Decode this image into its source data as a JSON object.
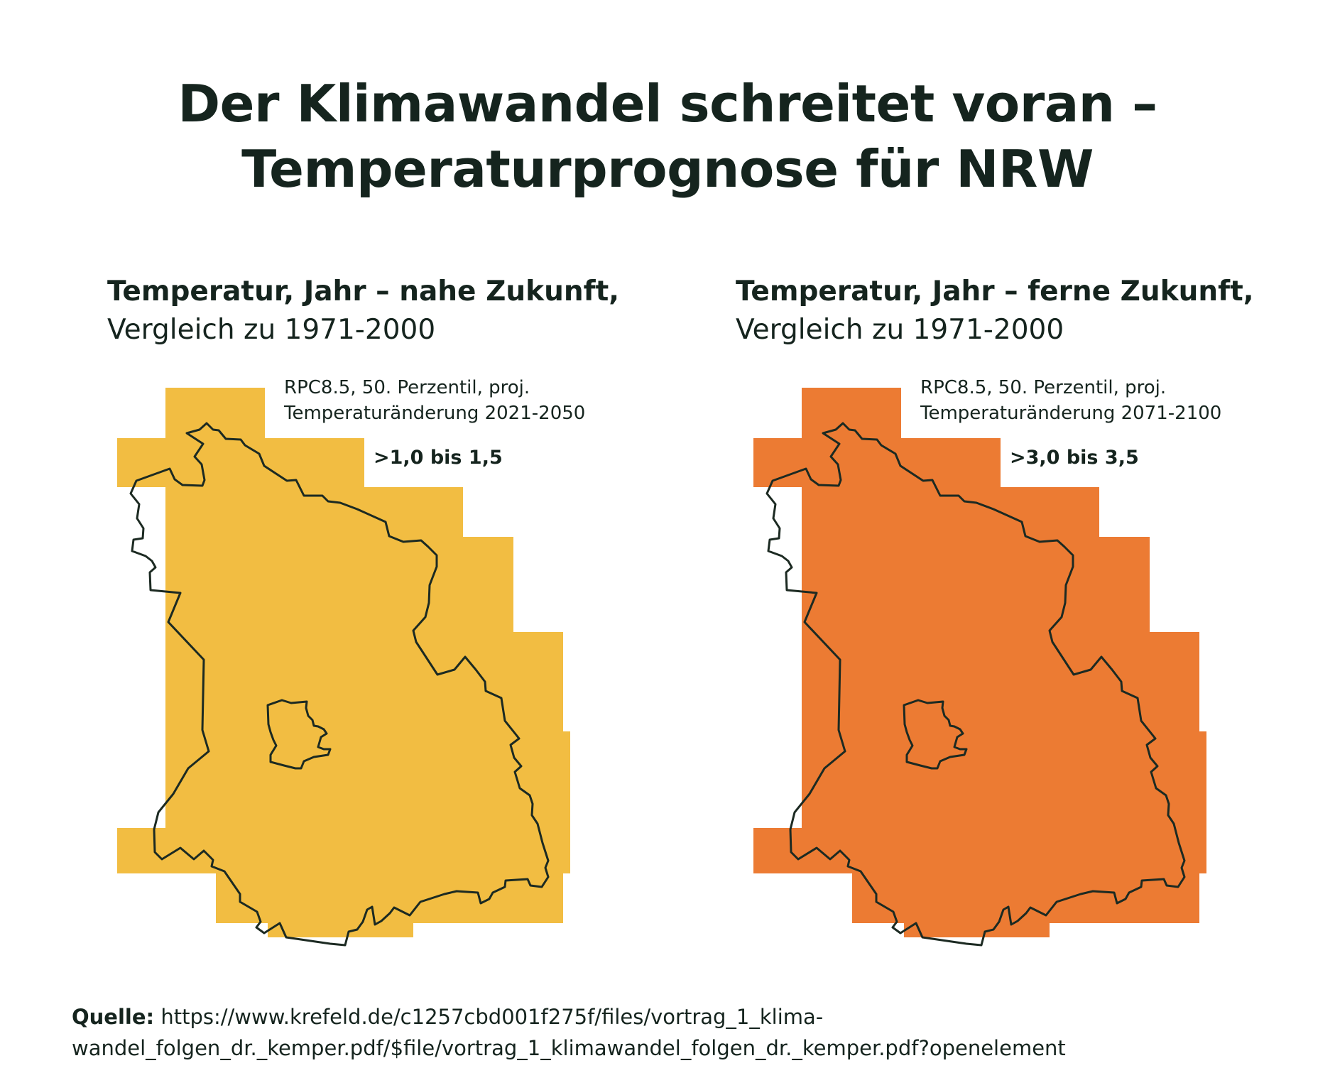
{
  "title": {
    "line1": "Der Klimawandel schreitet voran –",
    "line2": "Temperaturprognose für NRW"
  },
  "panels": [
    {
      "heading_bold": "Temperatur, Jahr – nahe Zukunft,",
      "heading_regular": "Vergleich zu 1971-2000",
      "note_line1": "RPC8.5, 50. Perzentil, proj.",
      "note_line2": "Temperaturänderung 2021-2050",
      "legend_value": ">1,0 bis 1,5",
      "fill_color": "#f2bd42",
      "legend_text_color": "#15241e"
    },
    {
      "heading_bold": "Temperatur, Jahr – ferne Zukunft,",
      "heading_regular": "Vergleich zu 1971-2000",
      "note_line1": "RPC8.5, 50. Perzentil, proj.",
      "note_line2": "Temperaturänderung 2071-2100",
      "legend_value": ">3,0 bis 3,5",
      "fill_color": "#ec7b33",
      "legend_text_color": "#15241e"
    }
  ],
  "source": {
    "label": "Quelle:",
    "line1": "https://www.krefeld.de/c1257cbd001f275f/files/vortrag_1_klima-",
    "line2": "wandel_folgen_dr._kemper.pdf/$file/vortrag_1_klimawandel_folgen_dr._kemper.pdf?openelement"
  },
  "colors": {
    "text": "#15241e",
    "outline": "#1c2a22",
    "background": "#ffffff"
  }
}
